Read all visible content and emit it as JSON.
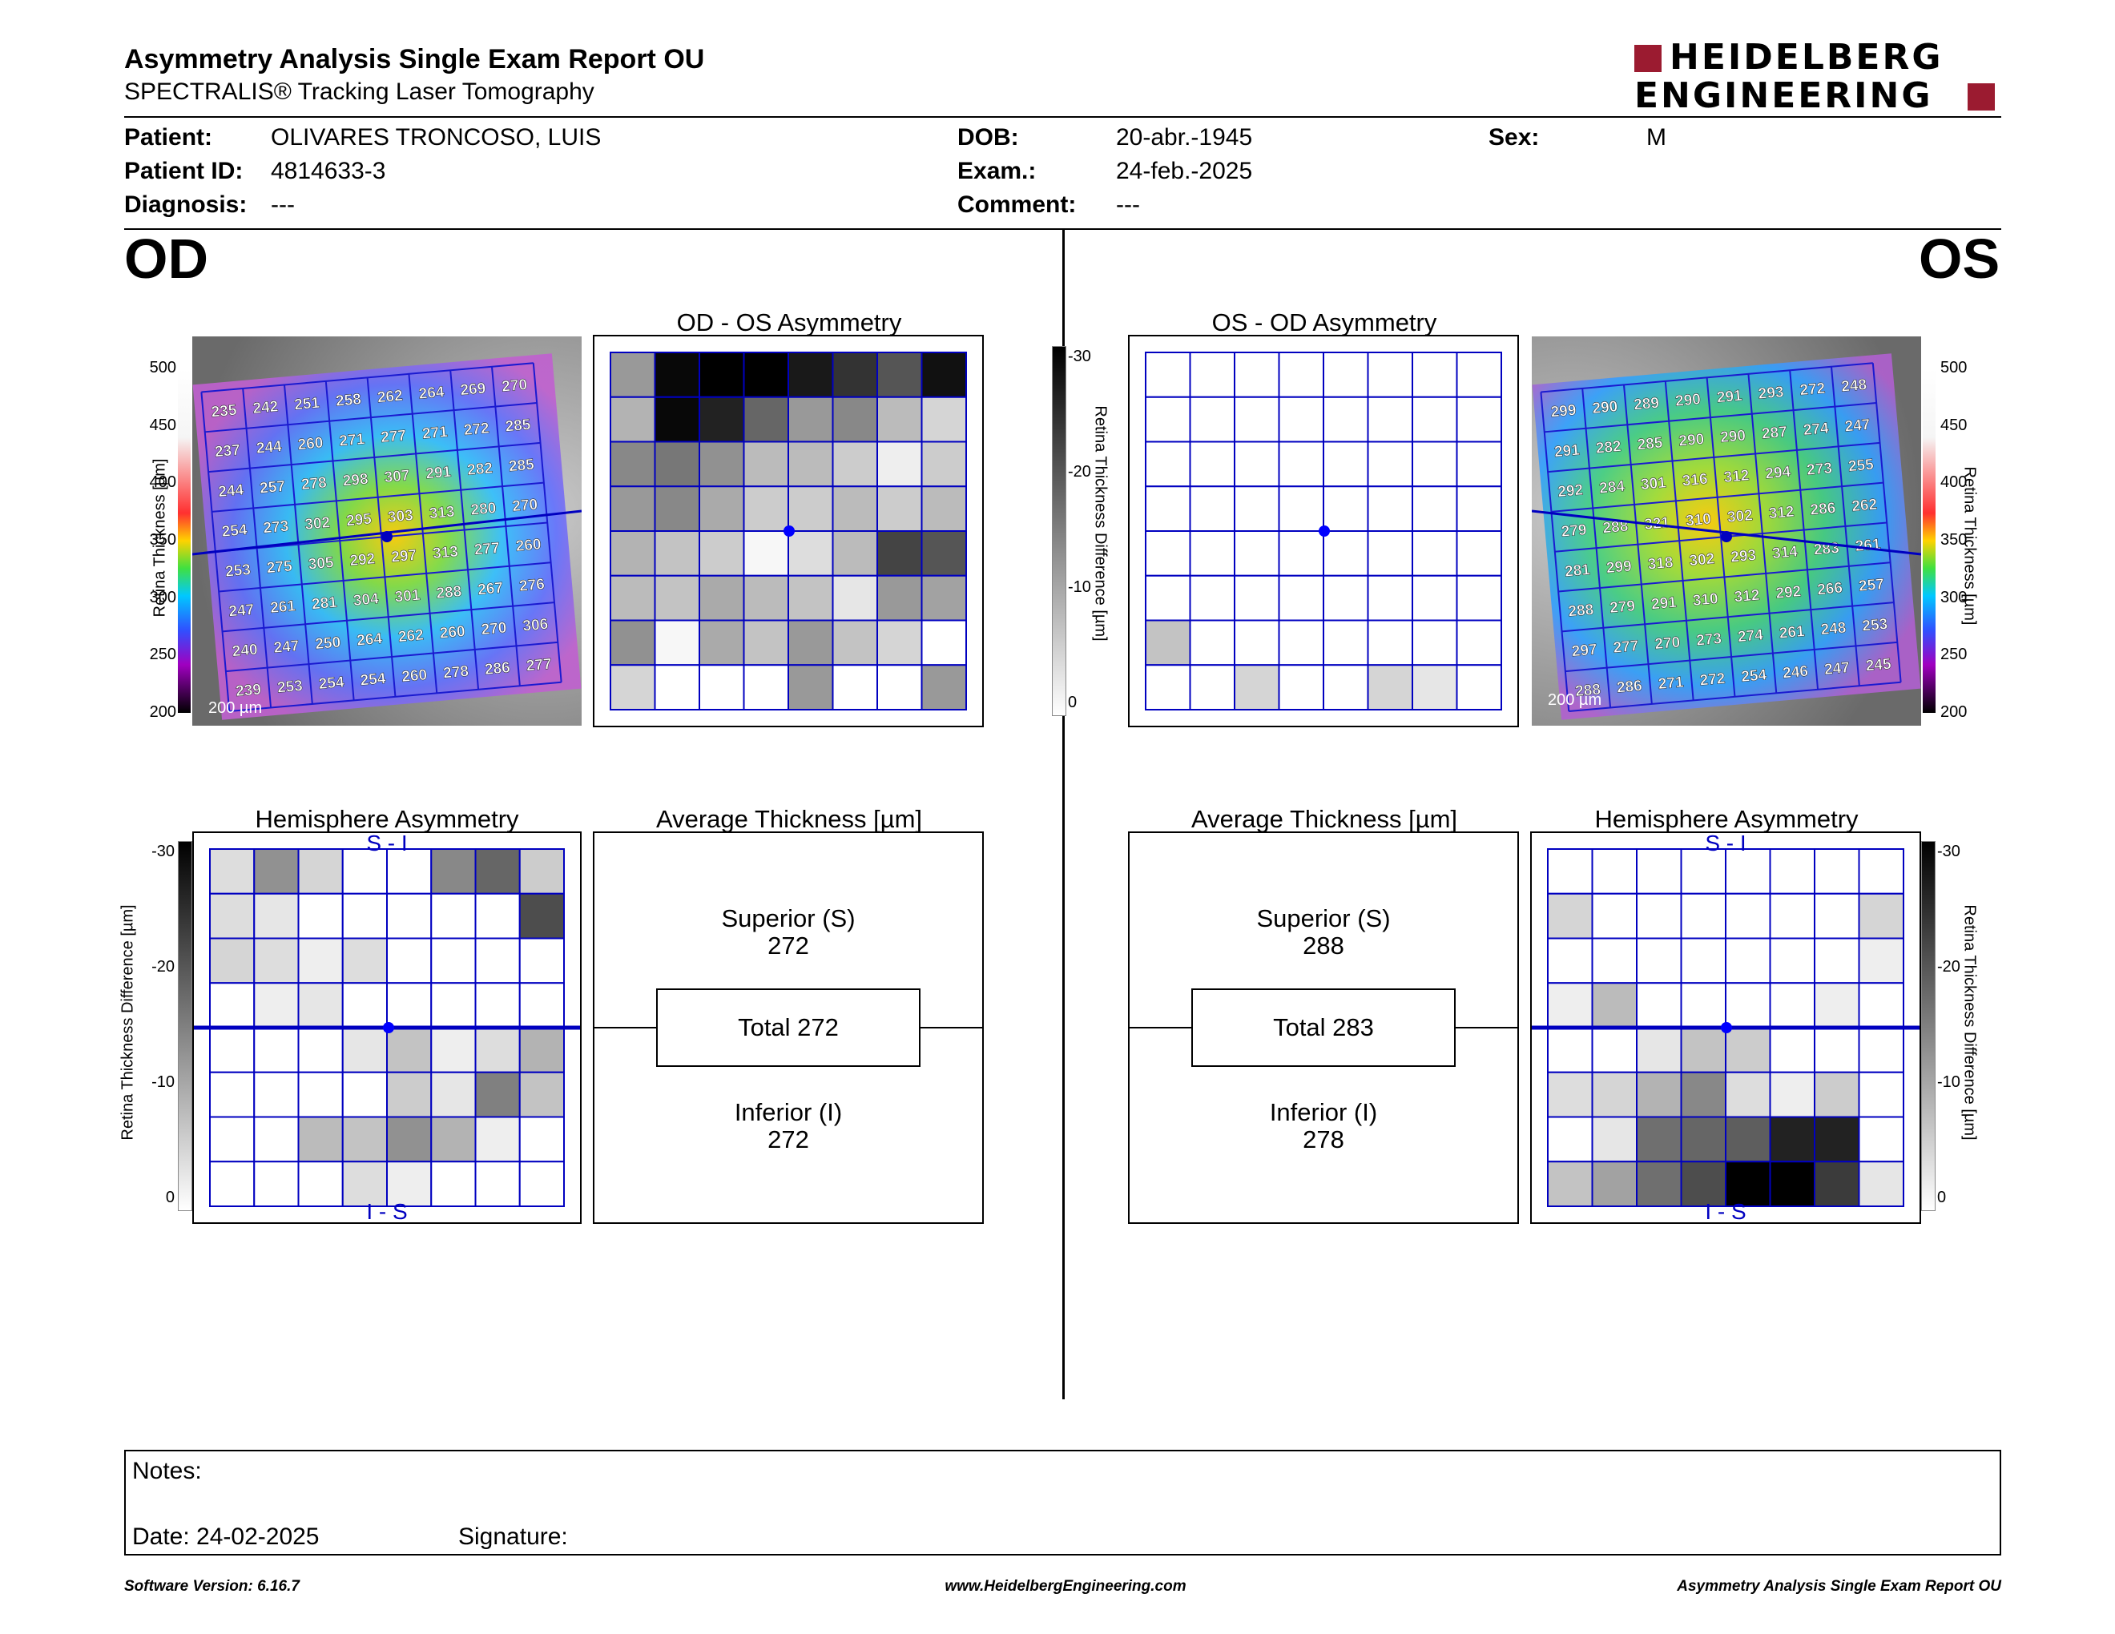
{
  "header": {
    "title": "Asymmetry Analysis Single Exam Report OU",
    "subtitle": "SPECTRALIS® Tracking Laser Tomography",
    "logo_top": "HEIDELBERG",
    "logo_bottom": "ENGINEERING",
    "brand_color": "#9b1b30"
  },
  "patient": {
    "name_label": "Patient:",
    "name": "OLIVARES TRONCOSO, LUIS",
    "id_label": "Patient ID:",
    "id": "4814633-3",
    "diagnosis_label": "Diagnosis:",
    "diagnosis": "---",
    "dob_label": "DOB:",
    "dob": "20-abr.-1945",
    "exam_label": "Exam.:",
    "exam": "24-feb.-2025",
    "comment_label": "Comment:",
    "comment": "---",
    "sex_label": "Sex:",
    "sex": "M"
  },
  "od": {
    "label": "OD",
    "asym_title": "OD - OS Asymmetry",
    "hemi_title": "Hemisphere Asymmetry",
    "avg_title": "Average Thickness [µm]",
    "superior_label": "Superior (S)",
    "superior_value": "272",
    "total_label": "Total 272",
    "inferior_label": "Inferior (I)",
    "inferior_value": "272",
    "hemi_top": "S - I",
    "hemi_bottom": "I - S",
    "scale_bar": "200 µm",
    "thickness_grid": [
      [
        235,
        242,
        251,
        258,
        262,
        264,
        269,
        270
      ],
      [
        237,
        244,
        260,
        271,
        277,
        271,
        272,
        285
      ],
      [
        244,
        257,
        278,
        298,
        307,
        291,
        282,
        285
      ],
      [
        254,
        273,
        302,
        295,
        303,
        313,
        280,
        270
      ],
      [
        253,
        275,
        305,
        292,
        297,
        313,
        277,
        260
      ],
      [
        247,
        261,
        281,
        304,
        301,
        288,
        267,
        276
      ],
      [
        240,
        247,
        250,
        264,
        262,
        260,
        270,
        306
      ],
      [
        239,
        253,
        254,
        254,
        260,
        278,
        286,
        277
      ]
    ],
    "asym_grid": [
      [
        -12,
        -29,
        -30,
        -30,
        -27,
        -24,
        -20,
        -28
      ],
      [
        -9,
        -29,
        -26,
        -18,
        -12,
        -14,
        -8,
        -5
      ],
      [
        -14,
        -16,
        -13,
        -8,
        -8,
        -6,
        -2,
        -6
      ],
      [
        -12,
        -14,
        -10,
        -6,
        -6,
        -8,
        -6,
        -8
      ],
      [
        -9,
        -7,
        -6,
        -1,
        -4,
        -8,
        -22,
        -20
      ],
      [
        -8,
        -7,
        -10,
        -8,
        -7,
        -3,
        -12,
        -11
      ],
      [
        -13,
        -1,
        -10,
        -7,
        -12,
        -7,
        -5,
        0
      ],
      [
        -5,
        0,
        0,
        0,
        -12,
        0,
        0,
        -12
      ]
    ],
    "hemi_grid": [
      [
        -4,
        -13,
        -5,
        0,
        0,
        -14,
        -18,
        -6
      ],
      [
        -4,
        -3,
        0,
        0,
        0,
        0,
        0,
        -21
      ],
      [
        -5,
        -4,
        -2,
        -4,
        0,
        0,
        0,
        0
      ],
      [
        0,
        -2,
        -3,
        0,
        0,
        0,
        0,
        0
      ],
      [
        0,
        0,
        0,
        -3,
        -7,
        -2,
        -4,
        -9
      ],
      [
        0,
        0,
        0,
        0,
        -6,
        -3,
        -15,
        -7
      ],
      [
        0,
        0,
        -8,
        -7,
        -13,
        -9,
        -2,
        0
      ],
      [
        0,
        0,
        0,
        -4,
        -2,
        0,
        0,
        0
      ]
    ]
  },
  "os": {
    "label": "OS",
    "asym_title": "OS - OD Asymmetry",
    "hemi_title": "Hemisphere Asymmetry",
    "avg_title": "Average Thickness [µm]",
    "superior_label": "Superior (S)",
    "superior_value": "288",
    "total_label": "Total 283",
    "inferior_label": "Inferior (I)",
    "inferior_value": "278",
    "hemi_top": "S - I",
    "hemi_bottom": "I - S",
    "scale_bar": "200 µm",
    "thickness_grid": [
      [
        299,
        290,
        289,
        290,
        291,
        293,
        272,
        248
      ],
      [
        291,
        282,
        285,
        290,
        290,
        287,
        274,
        247
      ],
      [
        292,
        284,
        301,
        316,
        312,
        294,
        273,
        255
      ],
      [
        279,
        288,
        321,
        310,
        302,
        312,
        286,
        262
      ],
      [
        281,
        299,
        318,
        302,
        293,
        314,
        283,
        261
      ],
      [
        288,
        279,
        291,
        310,
        312,
        292,
        266,
        257
      ],
      [
        297,
        277,
        270,
        273,
        274,
        261,
        248,
        253
      ],
      [
        288,
        286,
        271,
        272,
        254,
        246,
        247,
        245
      ]
    ],
    "asym_grid": [
      [
        0,
        0,
        0,
        0,
        0,
        0,
        0,
        0
      ],
      [
        0,
        0,
        0,
        0,
        0,
        0,
        0,
        0
      ],
      [
        0,
        0,
        0,
        0,
        0,
        0,
        0,
        0
      ],
      [
        0,
        0,
        0,
        0,
        0,
        0,
        0,
        0
      ],
      [
        0,
        0,
        0,
        0,
        0,
        0,
        0,
        0
      ],
      [
        0,
        0,
        0,
        0,
        0,
        0,
        0,
        0
      ],
      [
        -7,
        0,
        0,
        0,
        0,
        0,
        0,
        0
      ],
      [
        0,
        0,
        -5,
        0,
        0,
        -5,
        -3,
        0
      ]
    ],
    "hemi_grid": [
      [
        0,
        0,
        0,
        0,
        0,
        0,
        0,
        0
      ],
      [
        -5,
        0,
        0,
        0,
        0,
        0,
        0,
        -5
      ],
      [
        0,
        0,
        0,
        0,
        0,
        0,
        0,
        -2
      ],
      [
        -2,
        -8,
        0,
        0,
        0,
        0,
        -2,
        0
      ],
      [
        0,
        0,
        -3,
        -7,
        -6,
        0,
        0,
        0
      ],
      [
        -4,
        -5,
        -9,
        -14,
        -4,
        -2,
        -6,
        0
      ],
      [
        0,
        -3,
        -17,
        -18,
        -19,
        -26,
        -26,
        0
      ],
      [
        -7,
        -11,
        -17,
        -21,
        -30,
        -30,
        -23,
        -3
      ]
    ]
  },
  "thickness_scale": {
    "label": "Retina  Thickness [µm]",
    "ticks": [
      "500",
      "450",
      "400",
      "350",
      "300",
      "250",
      "200"
    ]
  },
  "diff_scale": {
    "label": "Retina Thickness Difference [µm]",
    "ticks": [
      "-30",
      "-20",
      "-10",
      "0"
    ]
  },
  "notes": {
    "notes_label": "Notes:",
    "date_label": "Date: 24-02-2025",
    "signature_label": "Signature:"
  },
  "footer": {
    "version": "Software Version: 6.16.7",
    "website": "www.HeidelbergEngineering.com",
    "report_name": "Asymmetry Analysis Single Exam Report OU"
  }
}
